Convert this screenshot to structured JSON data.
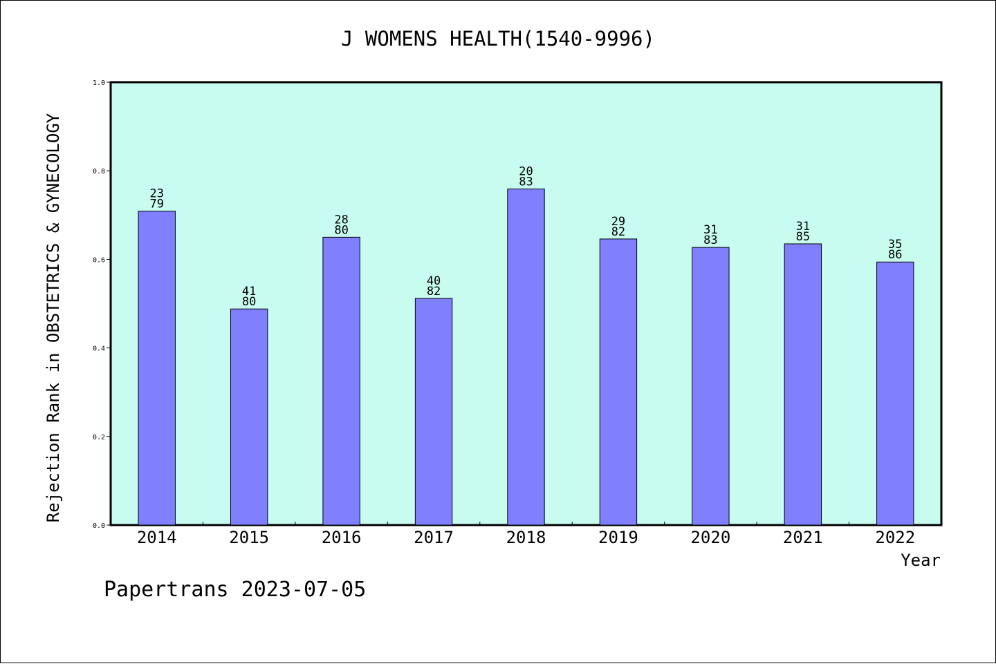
{
  "chart_data": {
    "type": "bar",
    "title": "J WOMENS HEALTH(1540-9996)",
    "xlabel": "Year",
    "ylabel": "Rejection Rank in OBSTETRICS & GYNECOLOGY",
    "ylim": [
      0,
      1.0
    ],
    "yticks": [
      "0.0",
      "0.2",
      "0.4",
      "0.6",
      "0.8",
      "1.0"
    ],
    "categories": [
      "2014",
      "2015",
      "2016",
      "2017",
      "2018",
      "2019",
      "2020",
      "2021",
      "2022"
    ],
    "values": [
      0.709,
      0.488,
      0.65,
      0.512,
      0.759,
      0.646,
      0.627,
      0.635,
      0.594
    ],
    "labels_top": [
      "23",
      "41",
      "28",
      "40",
      "20",
      "29",
      "31",
      "31",
      "35"
    ],
    "labels_bottom": [
      "79",
      "80",
      "80",
      "82",
      "83",
      "82",
      "83",
      "85",
      "86"
    ],
    "grid": false,
    "legend": "none",
    "colors": {
      "bar": "#8080ff",
      "plot_background": "#c8fcef",
      "axis": "#000000"
    }
  },
  "footer": "Papertrans 2023-07-05"
}
